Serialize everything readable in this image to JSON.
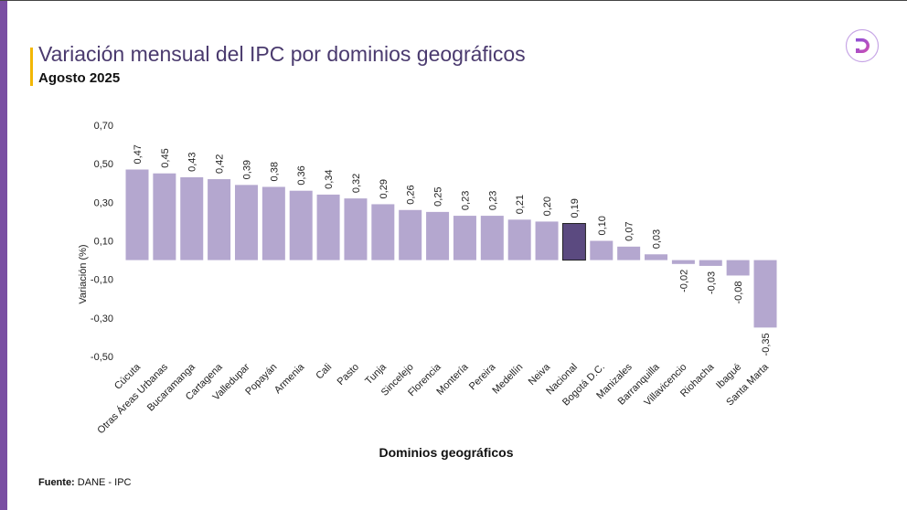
{
  "header": {
    "title": "Variación mensual del IPC por dominios geográficos",
    "subtitle": "Agosto 2025"
  },
  "footer": {
    "source_label": "Fuente:",
    "source_value": "DANE - IPC"
  },
  "logo": {
    "letter": "D"
  },
  "colors": {
    "bar": "#b4a7cf",
    "highlight": "#5b4a80",
    "accent": "#f2b705",
    "sidebar": "#7a4fa3"
  },
  "chart_data": {
    "type": "bar",
    "title": "Variación mensual del IPC por dominios geográficos",
    "xlabel": "Dominios geográficos",
    "ylabel": "Variación (%)",
    "ylim": [
      -0.5,
      0.7
    ],
    "yticks": [
      "0,70",
      "0,50",
      "0,30",
      "0,10",
      "-0,10",
      "-0,30",
      "-0,50"
    ],
    "ytick_values": [
      0.7,
      0.5,
      0.3,
      0.1,
      -0.1,
      -0.3,
      -0.5
    ],
    "grid": false,
    "highlight": "Nacional",
    "categories": [
      "Cúcuta",
      "Otras Áreas Urbanas",
      "Bucaramanga",
      "Cartagena",
      "Valledupar",
      "Popayán",
      "Armenia",
      "Cali",
      "Pasto",
      "Tunja",
      "Sincelejo",
      "Florencia",
      "Montería",
      "Pereira",
      "Medellín",
      "Neiva",
      "Nacional",
      "Bogotá D.C.",
      "Manizales",
      "Barranquilla",
      "Villavicencio",
      "Riohacha",
      "Ibagué",
      "Santa Marta"
    ],
    "values": [
      0.47,
      0.45,
      0.43,
      0.42,
      0.39,
      0.38,
      0.36,
      0.34,
      0.32,
      0.29,
      0.26,
      0.25,
      0.23,
      0.23,
      0.21,
      0.2,
      0.19,
      0.1,
      0.07,
      0.03,
      -0.02,
      -0.03,
      -0.08,
      -0.35
    ],
    "labels": [
      "0,47",
      "0,45",
      "0,43",
      "0,42",
      "0,39",
      "0,38",
      "0,36",
      "0,34",
      "0,32",
      "0,29",
      "0,26",
      "0,25",
      "0,23",
      "0,23",
      "0,21",
      "0,20",
      "0,19",
      "0,10",
      "0,07",
      "0,03",
      "-0,02",
      "-0,03",
      "-0,08",
      "-0,35"
    ]
  }
}
